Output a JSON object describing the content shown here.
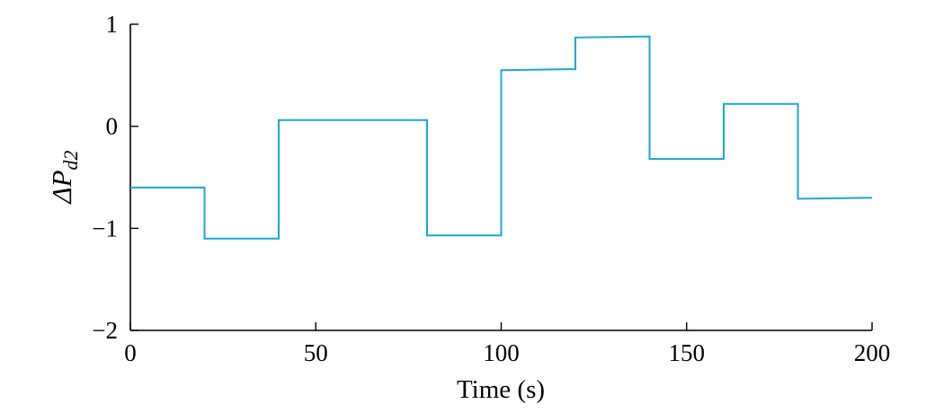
{
  "chart_data": {
    "type": "line",
    "title": "",
    "xlabel": "Time (s)",
    "ylabel": {
      "symbol": "ΔP",
      "subscript": "d2"
    },
    "xlim": [
      0,
      200
    ],
    "ylim": [
      -2,
      1
    ],
    "x_ticks": [
      0,
      50,
      100,
      150,
      200
    ],
    "x_tick_labels": [
      "0",
      "50",
      "100",
      "150",
      "200"
    ],
    "y_ticks": [
      1,
      0,
      -1,
      -2
    ],
    "y_tick_labels": [
      "1",
      "0",
      "−1",
      "−2"
    ],
    "grid": false,
    "line_color": "#1aa7d8",
    "series": [
      {
        "x": [
          0,
          20,
          20,
          40,
          40,
          80,
          80,
          100,
          100,
          120,
          120,
          140,
          140,
          160,
          160,
          180,
          180,
          200
        ],
        "y": [
          -0.6,
          -0.6,
          -1.1,
          -1.1,
          0.06,
          0.06,
          -1.07,
          -1.07,
          0.55,
          0.56,
          0.87,
          0.88,
          -0.32,
          -0.32,
          0.22,
          0.22,
          -0.71,
          -0.7
        ]
      }
    ]
  }
}
